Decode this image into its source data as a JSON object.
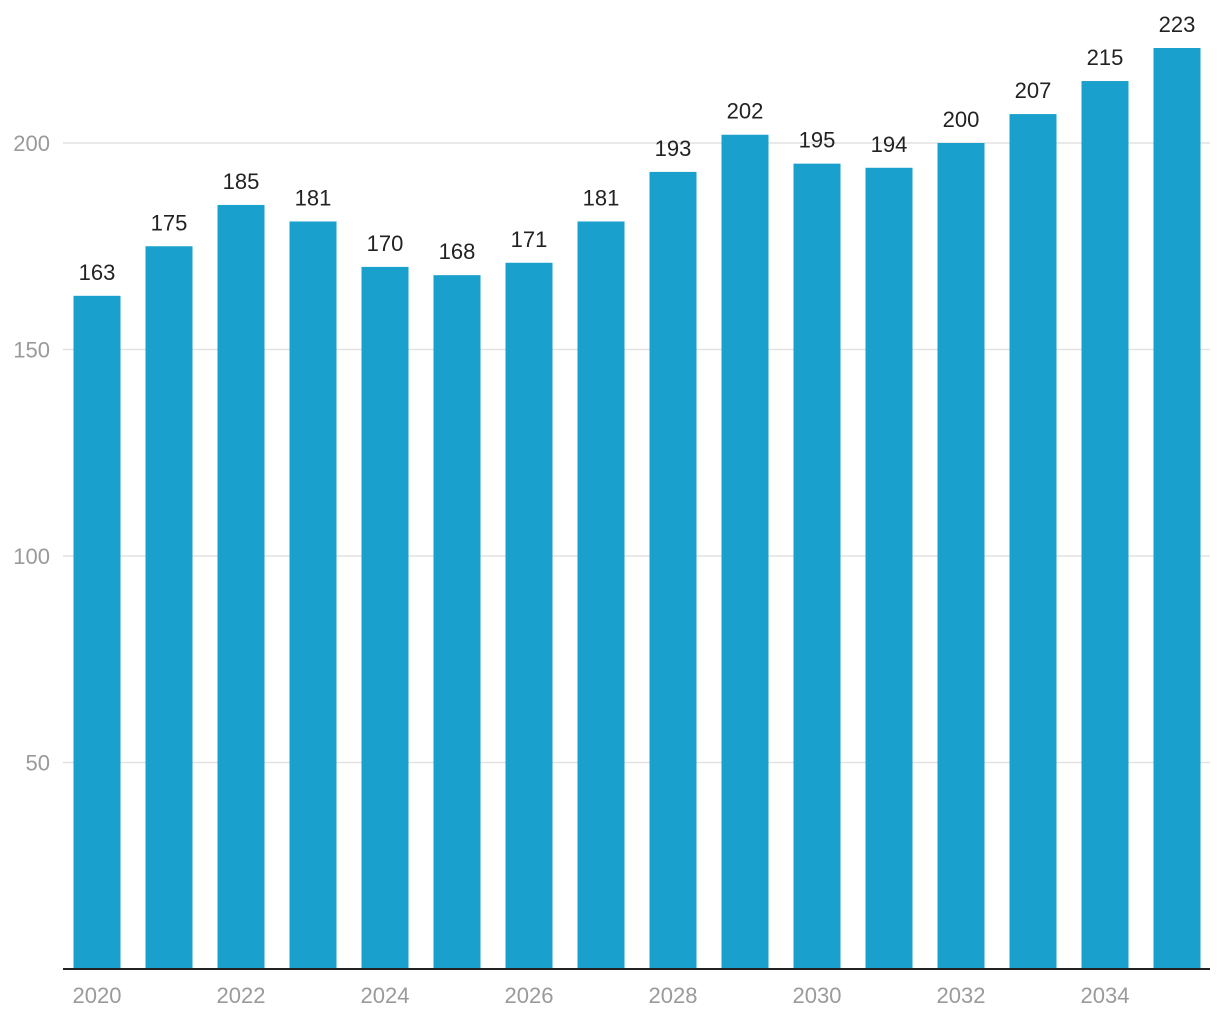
{
  "chart_data": {
    "type": "bar",
    "categories": [
      "2020",
      "2021",
      "2022",
      "2023",
      "2024",
      "2025",
      "2026",
      "2027",
      "2028",
      "2029",
      "2030",
      "2031",
      "2032",
      "2033",
      "2034",
      "2035"
    ],
    "values": [
      163,
      175,
      185,
      181,
      170,
      168,
      171,
      181,
      193,
      202,
      195,
      194,
      200,
      207,
      215,
      223
    ],
    "x_tick_labels": [
      "2020",
      "2022",
      "2024",
      "2026",
      "2028",
      "2030",
      "2032",
      "2034"
    ],
    "y_ticks": [
      50,
      100,
      150,
      200
    ],
    "ylim": [
      0,
      223
    ],
    "grid": true,
    "data_labels": true,
    "bar_color": "#19a0cd"
  }
}
